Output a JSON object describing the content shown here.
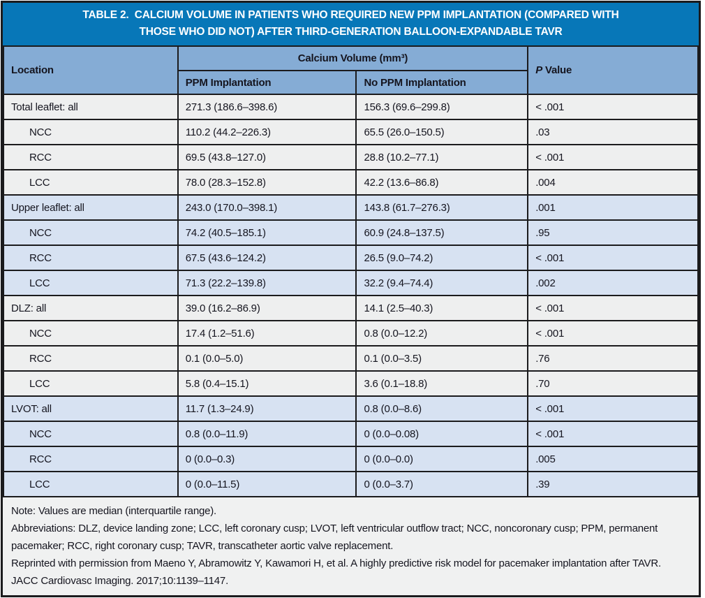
{
  "colors": {
    "title_bar": "#0777B8",
    "header_blue": "#85ACD5",
    "row_gray": "#EEEFEF",
    "row_blue": "#D7E2F2",
    "footer_bg": "#F0F1F1",
    "border": "#1B1B1D",
    "title_text": "#FFFFFF",
    "body_text": "#15151F"
  },
  "title": {
    "line1": "TABLE 2.  CALCIUM VOLUME IN PATIENTS WHO REQUIRED NEW PPM IMPLANTATION (COMPARED WITH",
    "line2": "THOSE WHO DID NOT) AFTER THIRD-GENERATION BALLOON-EXPANDABLE TAVR"
  },
  "header": {
    "location": "Location",
    "calcium_volume_group": "Calcium Volume (mm³)",
    "ppm": "PPM Implantation",
    "no_ppm": "No PPM Implantation",
    "p_italic": "P",
    "p_rest": " Value"
  },
  "rows": [
    {
      "location": "Total leaflet: all",
      "ppm": "271.3 (186.6–398.6)",
      "no_ppm": "156.3 (69.6–299.8)",
      "p": "< .001"
    },
    {
      "location": "NCC",
      "ppm": "110.2 (44.2–226.3)",
      "no_ppm": "65.5 (26.0–150.5)",
      "p": ".03"
    },
    {
      "location": "RCC",
      "ppm": "69.5 (43.8–127.0)",
      "no_ppm": "28.8 (10.2–77.1)",
      "p": "< .001"
    },
    {
      "location": "LCC",
      "ppm": "78.0 (28.3–152.8)",
      "no_ppm": "42.2 (13.6–86.8)",
      "p": ".004"
    },
    {
      "location": "Upper leaflet: all",
      "ppm": "243.0 (170.0–398.1)",
      "no_ppm": "143.8 (61.7–276.3)",
      "p": ".001"
    },
    {
      "location": "NCC",
      "ppm": "74.2 (40.5–185.1)",
      "no_ppm": "60.9 (24.8–137.5)",
      "p": ".95"
    },
    {
      "location": "RCC",
      "ppm": "67.5 (43.6–124.2)",
      "no_ppm": "26.5 (9.0–74.2)",
      "p": "< .001"
    },
    {
      "location": "LCC",
      "ppm": "71.3 (22.2–139.8)",
      "no_ppm": "32.2 (9.4–74.4)",
      "p": ".002"
    },
    {
      "location": "DLZ: all",
      "ppm": "39.0 (16.2–86.9)",
      "no_ppm": "14.1 (2.5–40.3)",
      "p": "< .001"
    },
    {
      "location": "NCC",
      "ppm": "17.4 (1.2–51.6)",
      "no_ppm": "0.8 (0.0–12.2)",
      "p": "< .001"
    },
    {
      "location": "RCC",
      "ppm": "0.1 (0.0–5.0)",
      "no_ppm": "0.1 (0.0–3.5)",
      "p": ".76"
    },
    {
      "location": "LCC",
      "ppm": "5.8 (0.4–15.1)",
      "no_ppm": "3.6 (0.1–18.8)",
      "p": ".70"
    },
    {
      "location": "LVOT: all",
      "ppm": "11.7 (1.3–24.9)",
      "no_ppm": "0.8 (0.0–8.6)",
      "p": "< .001"
    },
    {
      "location": "NCC",
      "ppm": "0.8 (0.0–11.9)",
      "no_ppm": "0 (0.0–0.08)",
      "p": "< .001"
    },
    {
      "location": "RCC",
      "ppm": "0 (0.0–0.3)",
      "no_ppm": "0 (0.0–0.0)",
      "p": ".005"
    },
    {
      "location": "LCC",
      "ppm": "0 (0.0–11.5)",
      "no_ppm": "0 (0.0–3.7)",
      "p": ".39"
    }
  ],
  "footnotes": {
    "note": "Note: Values are median (interquartile range).",
    "abbreviations": "Abbreviations: DLZ, device landing zone; LCC, left coronary cusp; LVOT, left ventricular outflow tract; NCC, noncoronary cusp; PPM, permanent pacemaker; RCC, right coronary cusp; TAVR, transcatheter aortic valve replacement.",
    "reprint": "Reprinted with permission from Maeno Y, Abramowitz Y, Kawamori H, et al. A highly predictive risk model for pacemaker implantation after TAVR. JACC Cardiovasc Imaging. 2017;10:1139–1147."
  }
}
